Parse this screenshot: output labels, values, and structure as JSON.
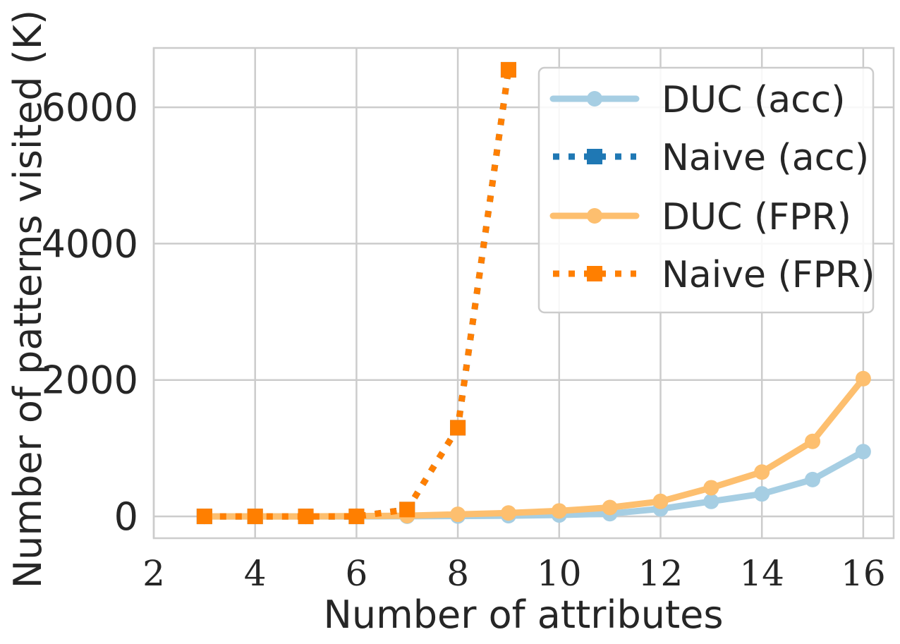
{
  "chart_data": {
    "type": "line",
    "title": "",
    "xlabel": "Number of attributes",
    "ylabel": "Number of patterns visited (K)",
    "xlim": [
      2,
      16.6
    ],
    "ylim": [
      -320,
      6870
    ],
    "xticks": [
      2,
      4,
      6,
      8,
      10,
      12,
      14,
      16
    ],
    "yticks": [
      0,
      2000,
      4000,
      6000
    ],
    "grid": true,
    "legend_position": "top-right",
    "series": [
      {
        "name": "DUC (acc)",
        "color": "#a6cee3",
        "linestyle": "solid",
        "marker": "circle",
        "x": [
          3,
          4,
          5,
          6,
          7,
          8,
          9,
          10,
          11,
          12,
          13,
          14,
          15,
          16
        ],
        "values": [
          0,
          0,
          0,
          0,
          2,
          5,
          10,
          20,
          40,
          110,
          220,
          330,
          540,
          950
        ]
      },
      {
        "name": "Naive (acc)",
        "color": "#1f78b4",
        "linestyle": "dotted",
        "marker": "square",
        "x": [
          3,
          4,
          5,
          6,
          7,
          8,
          9
        ],
        "values": [
          0,
          0,
          0,
          0,
          100,
          1300,
          6550
        ]
      },
      {
        "name": "DUC (FPR)",
        "color": "#fdbf6f",
        "linestyle": "solid",
        "marker": "circle",
        "x": [
          3,
          4,
          5,
          6,
          7,
          8,
          9,
          10,
          11,
          12,
          13,
          14,
          15,
          16
        ],
        "values": [
          0,
          0,
          0,
          5,
          10,
          30,
          50,
          80,
          130,
          220,
          420,
          650,
          1100,
          2020
        ]
      },
      {
        "name": "Naive (FPR)",
        "color": "#ff7f00",
        "linestyle": "dotted",
        "marker": "square",
        "x": [
          3,
          4,
          5,
          6,
          7,
          8,
          9
        ],
        "values": [
          0,
          0,
          0,
          0,
          100,
          1300,
          6550
        ]
      }
    ]
  }
}
